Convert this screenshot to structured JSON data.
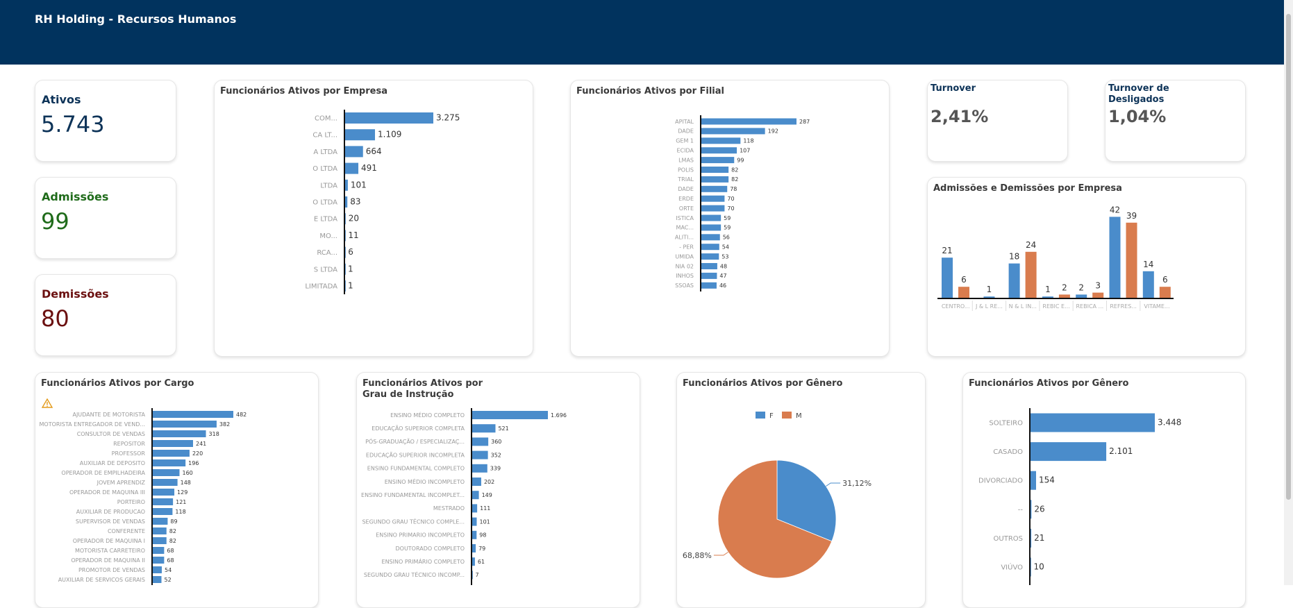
{
  "header": {
    "title": "RH Holding - Recursos Humanos"
  },
  "colors": {
    "header": "#01335e",
    "bar": "#4a8ccb",
    "admissoes": "#4a8ccb",
    "demissoes": "#d97c4e",
    "ativos": "#0d3358",
    "admissoes_kpi": "#1f6b1a",
    "demissoes_kpi": "#6b1010"
  },
  "kpis": {
    "ativos": {
      "label": "Ativos",
      "value": "5.743"
    },
    "admissoes": {
      "label": "Admissões",
      "value": "99"
    },
    "demissoes": {
      "label": "Demissões",
      "value": "80"
    },
    "turnover": {
      "label": "Turnover",
      "value": "2,41%"
    },
    "turnover_desligados": {
      "label": "Turnover de Desligados",
      "value": "1,04%"
    }
  },
  "cargo_warning_icon": "warning-icon",
  "chart_data": [
    {
      "id": "empresa",
      "type": "bar",
      "orientation": "horizontal",
      "title": "Funcionários Ativos por Empresa",
      "categories": [
        "COM...",
        "CA LT...",
        "A LTDA",
        "O LTDA",
        "LTDA",
        "O LTDA",
        "E LTDA",
        "MO...",
        "RCA...",
        "S LTDA",
        "LIMITADA"
      ],
      "values": [
        3275,
        1109,
        664,
        491,
        101,
        83,
        20,
        11,
        6,
        1,
        1
      ],
      "labels": [
        "3.275",
        "1.109",
        "664",
        "491",
        "101",
        "83",
        "20",
        "11",
        "6",
        "1",
        "1"
      ]
    },
    {
      "id": "filial",
      "type": "bar",
      "orientation": "horizontal",
      "title": "Funcionários Ativos por Filial",
      "categories": [
        "APITAL",
        "DADE",
        "GEM 1",
        "ECIDA",
        "LMAS",
        "POLIS",
        "TRIAL",
        "DADE",
        "ERDE",
        "ORTE",
        "ISTICA",
        "MAC...",
        "ALITI...",
        "- PER",
        "UMIDA",
        "NIA 02",
        "INHOS",
        "SSOAS"
      ],
      "values": [
        287,
        192,
        118,
        107,
        99,
        82,
        82,
        78,
        70,
        70,
        59,
        59,
        56,
        54,
        53,
        48,
        47,
        46
      ],
      "labels": [
        "287",
        "192",
        "118",
        "107",
        "99",
        "82",
        "82",
        "78",
        "70",
        "70",
        "59",
        "59",
        "56",
        "54",
        "53",
        "48",
        "47",
        "46"
      ]
    },
    {
      "id": "admdem",
      "type": "bar",
      "orientation": "vertical",
      "title": "Admissões e Demissões por Empresa",
      "categories": [
        "CENTRO...",
        "J & L RE...",
        "N & L IN...",
        "REBIC E...",
        "REBICA ...",
        "REFRES...",
        "VITAME..."
      ],
      "series": [
        {
          "values": [
            21,
            1,
            18,
            1,
            2,
            42,
            14
          ]
        },
        {
          "values": [
            6,
            null,
            24,
            2,
            3,
            39,
            6
          ]
        }
      ]
    },
    {
      "id": "cargo",
      "type": "bar",
      "orientation": "horizontal",
      "title": "Funcionários Ativos por Cargo",
      "categories": [
        "AJUDANTE DE MOTORISTA",
        "MOTORISTA ENTREGADOR DE VEND...",
        "CONSULTOR DE VENDAS",
        "REPOSITOR",
        "PROFESSOR",
        "AUXILIAR DE DEPOSITO",
        "OPERADOR DE EMPILHADEIRA",
        "JOVEM APRENDIZ",
        "OPERADOR DE MAQUINA III",
        "PORTEIRO",
        "AUXILIAR DE PRODUCAO",
        "SUPERVISOR DE VENDAS",
        "CONFERENTE",
        "OPERADOR DE MAQUINA I",
        "MOTORISTA CARRETEIRO",
        "OPERADOR DE MAQUINA II",
        "PROMOTOR DE VENDAS",
        "AUXILIAR DE SERVICOS GERAIS"
      ],
      "values": [
        482,
        382,
        318,
        241,
        220,
        196,
        160,
        148,
        129,
        121,
        118,
        89,
        82,
        82,
        68,
        68,
        54,
        52
      ],
      "labels": [
        "482",
        "382",
        "318",
        "241",
        "220",
        "196",
        "160",
        "148",
        "129",
        "121",
        "118",
        "89",
        "82",
        "82",
        "68",
        "68",
        "54",
        "52"
      ]
    },
    {
      "id": "grau",
      "type": "bar",
      "orientation": "horizontal",
      "title": "Funcionários Ativos por Grau de Instrução",
      "categories": [
        "ENSINO MÉDIO COMPLETO",
        "EDUCAÇÃO SUPERIOR COMPLETA",
        "PÓS-GRADUAÇÃO / ESPECIALIZAÇ...",
        "EDUCAÇÃO SUPERIOR INCOMPLETA",
        "ENSINO FUNDAMENTAL COMPLETO",
        "ENSINO MÉDIO INCOMPLETO",
        "ENSINO FUNDAMENTAL INCOMPLET...",
        "MESTRADO",
        "SEGUNDO GRAU TÉCNICO COMPLE...",
        "ENSINO PRIMARIO INCOMPLETO",
        "DOUTORADO COMPLETO",
        "ENSINO PRIMÁRIO COMPLETO",
        "SEGUNDO GRAU TÉCNICO INCOMP..."
      ],
      "values": [
        1696,
        521,
        360,
        352,
        339,
        202,
        149,
        111,
        101,
        98,
        79,
        61,
        7
      ],
      "labels": [
        "1.696",
        "521",
        "360",
        "352",
        "339",
        "202",
        "149",
        "111",
        "101",
        "98",
        "79",
        "61",
        "7"
      ]
    },
    {
      "id": "genero",
      "type": "pie",
      "title": "Funcionários Ativos por Gênero",
      "legend": [
        "F",
        "M"
      ],
      "legend_position": "top",
      "values": [
        31.12,
        68.88
      ],
      "labels": [
        "31,12%",
        "68,88%"
      ]
    },
    {
      "id": "civil",
      "type": "bar",
      "orientation": "horizontal",
      "title": "Funcionários Ativos por Gênero",
      "categories": [
        "SOLTEIRO",
        "CASADO",
        "DIVORCIADO",
        "--",
        "OUTROS",
        "VIÚVO"
      ],
      "values": [
        3448,
        2101,
        154,
        26,
        21,
        10
      ],
      "labels": [
        "3.448",
        "2.101",
        "154",
        "26",
        "21",
        "10"
      ]
    }
  ]
}
